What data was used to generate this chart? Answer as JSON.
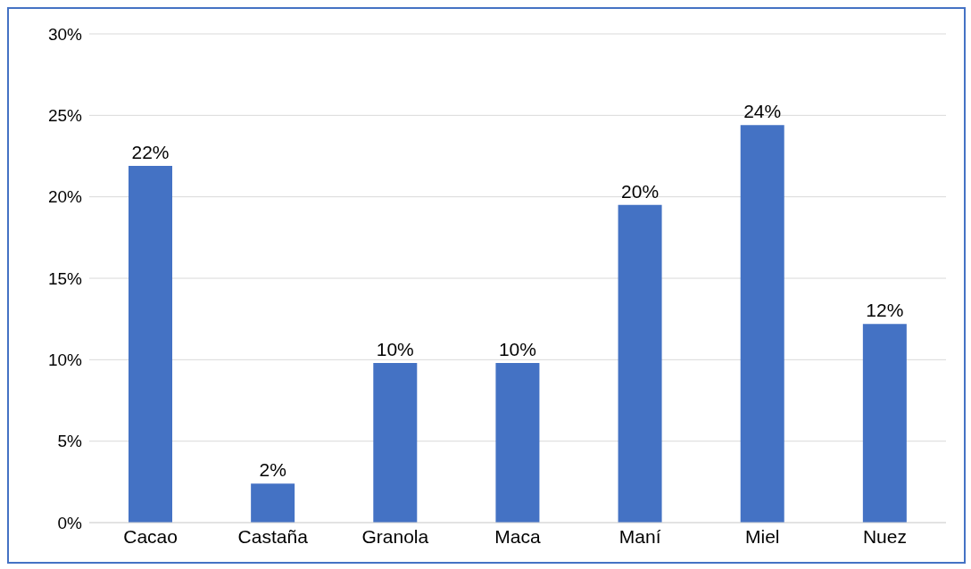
{
  "chart_data": {
    "type": "bar",
    "categories": [
      "Cacao",
      "Castaña",
      "Granola",
      "Maca",
      "Maní",
      "Miel",
      "Nuez"
    ],
    "values": [
      21.9,
      2.4,
      9.8,
      9.8,
      19.5,
      24.4,
      12.2
    ],
    "value_labels": [
      "22%",
      "2%",
      "10%",
      "10%",
      "20%",
      "24%",
      "12%"
    ],
    "color": "#4472c4",
    "ylim": [
      0,
      30
    ],
    "yticks": [
      {
        "value": 0,
        "label": "0%"
      },
      {
        "value": 5,
        "label": "5%"
      },
      {
        "value": 10,
        "label": "10%"
      },
      {
        "value": 15,
        "label": "15%"
      },
      {
        "value": 20,
        "label": "20%"
      },
      {
        "value": 25,
        "label": "25%"
      },
      {
        "value": 30,
        "label": "30%"
      }
    ],
    "grid": "y"
  }
}
